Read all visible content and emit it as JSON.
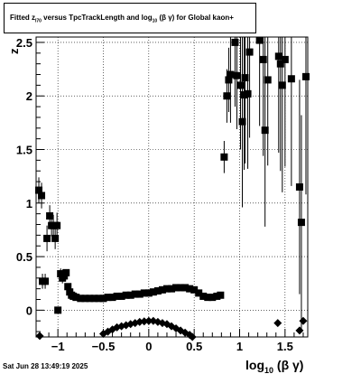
{
  "title": {
    "part1": "Fitted  z",
    "sub1": "I70",
    "part2": "  versus TpcTrackLength and log",
    "sub2": "10",
    "part3": " (β  γ) for Global kaon+"
  },
  "timestamp": "Sat Jun 28 13:49:19 2025",
  "chart_data": {
    "type": "scatter",
    "xlabel": "log10 (β γ)",
    "xlabel_main": "log",
    "xlabel_sub": "10",
    "xlabel_rest": " (β γ)",
    "ylabel": "z",
    "xlim": [
      -1.24,
      1.75
    ],
    "ylim": [
      -0.25,
      2.55
    ],
    "x_ticks": [
      -1,
      -0.5,
      0,
      0.5,
      1,
      1.5
    ],
    "x_tick_labels": [
      "−1",
      "−0.5",
      "0",
      "0.5",
      "1",
      "1.5"
    ],
    "y_ticks": [
      0,
      0.5,
      1,
      1.5,
      2,
      2.5
    ],
    "y_tick_labels": [
      "0",
      "0.5",
      "1",
      "1.5",
      "2",
      "2.5"
    ],
    "grid": true,
    "series": [
      {
        "marker": "square",
        "points": [
          [
            -1.21,
            1.12,
            0.12
          ],
          [
            -1.18,
            1.07,
            0.12
          ],
          [
            -1.17,
            0.27,
            0.07
          ],
          [
            -1.14,
            0.27,
            0.07
          ],
          [
            -1.12,
            0.67,
            0.12
          ],
          [
            -1.09,
            0.88,
            0.1
          ],
          [
            -1.07,
            0.79,
            0.1
          ],
          [
            -1.05,
            0.79,
            0.1
          ],
          [
            -1.03,
            0.67,
            0.1
          ],
          [
            -1.01,
            0.79,
            0.12
          ],
          [
            -1.0,
            0.0,
            0.0
          ],
          [
            -0.97,
            0.34,
            0.05
          ],
          [
            -0.95,
            0.3,
            0.05
          ],
          [
            -0.93,
            0.32,
            0.04
          ],
          [
            -0.91,
            0.35,
            0.03
          ],
          [
            -0.89,
            0.22,
            0.02
          ],
          [
            -0.87,
            0.17,
            0.02
          ],
          [
            -0.85,
            0.14,
            0.01
          ],
          [
            -0.83,
            0.13,
            0.01
          ],
          [
            -0.8,
            0.12,
            0.0
          ],
          [
            -0.75,
            0.11,
            0.0
          ],
          [
            -0.7,
            0.11,
            0.0
          ],
          [
            -0.65,
            0.11,
            0.0
          ],
          [
            -0.6,
            0.11,
            0.0
          ],
          [
            -0.55,
            0.11,
            0.0
          ],
          [
            -0.5,
            0.11,
            0.0
          ],
          [
            -0.45,
            0.12,
            0.0
          ],
          [
            -0.4,
            0.12,
            0.0
          ],
          [
            -0.35,
            0.13,
            0.0
          ],
          [
            -0.3,
            0.13,
            0.0
          ],
          [
            -0.25,
            0.14,
            0.0
          ],
          [
            -0.2,
            0.14,
            0.0
          ],
          [
            -0.15,
            0.15,
            0.0
          ],
          [
            -0.1,
            0.15,
            0.0
          ],
          [
            -0.05,
            0.16,
            0.0
          ],
          [
            0.0,
            0.16,
            0.0
          ],
          [
            0.05,
            0.17,
            0.0
          ],
          [
            0.1,
            0.18,
            0.0
          ],
          [
            0.15,
            0.19,
            0.0
          ],
          [
            0.2,
            0.2,
            0.0
          ],
          [
            0.25,
            0.2,
            0.0
          ],
          [
            0.3,
            0.21,
            0.0
          ],
          [
            0.35,
            0.21,
            0.0
          ],
          [
            0.4,
            0.21,
            0.0
          ],
          [
            0.45,
            0.2,
            0.0
          ],
          [
            0.5,
            0.19,
            0.01
          ],
          [
            0.55,
            0.16,
            0.01
          ],
          [
            0.6,
            0.13,
            0.01
          ],
          [
            0.65,
            0.12,
            0.01
          ],
          [
            0.7,
            0.12,
            0.01
          ],
          [
            0.75,
            0.13,
            0.02
          ],
          [
            0.79,
            0.14,
            0.02
          ],
          [
            0.83,
            1.43,
            0.15
          ],
          [
            0.86,
            2.0,
            0.25
          ],
          [
            0.88,
            2.15,
            0.3
          ],
          [
            0.9,
            2.2,
            0.45
          ],
          [
            0.95,
            2.5,
            0.6
          ],
          [
            0.97,
            2.19,
            0.5
          ],
          [
            1.01,
            2.1,
            0.6
          ],
          [
            1.03,
            1.76,
            0.8
          ],
          [
            1.05,
            2.01,
            0.7
          ],
          [
            1.06,
            2.17,
            0.8
          ],
          [
            1.09,
            2.02,
            0.7
          ],
          [
            1.11,
            2.41,
            0.8
          ],
          [
            1.22,
            2.52,
            0.8
          ],
          [
            1.26,
            2.34,
            0.9
          ],
          [
            1.28,
            1.68,
            0.9
          ],
          [
            1.31,
            2.15,
            0.8
          ],
          [
            1.43,
            2.37,
            0.9
          ],
          [
            1.45,
            2.3,
            1.0
          ],
          [
            1.47,
            2.1,
            1.0
          ],
          [
            1.5,
            2.34,
            1.0
          ],
          [
            1.57,
            2.16,
            1.0
          ],
          [
            1.66,
            1.15,
            1.0
          ],
          [
            1.68,
            0.82,
            1.0
          ],
          [
            1.73,
            2.18,
            1.1
          ]
        ]
      },
      {
        "marker": "diamond",
        "points": [
          [
            -1.2,
            -0.24
          ],
          [
            -0.5,
            -0.22
          ],
          [
            -0.45,
            -0.2
          ],
          [
            -0.4,
            -0.18
          ],
          [
            -0.35,
            -0.16
          ],
          [
            -0.3,
            -0.15
          ],
          [
            -0.25,
            -0.14
          ],
          [
            -0.2,
            -0.13
          ],
          [
            -0.15,
            -0.12
          ],
          [
            -0.1,
            -0.11
          ],
          [
            -0.05,
            -0.105
          ],
          [
            0.0,
            -0.1
          ],
          [
            0.05,
            -0.1
          ],
          [
            0.1,
            -0.11
          ],
          [
            0.15,
            -0.12
          ],
          [
            0.2,
            -0.13
          ],
          [
            0.25,
            -0.15
          ],
          [
            0.3,
            -0.17
          ],
          [
            0.35,
            -0.19
          ],
          [
            0.4,
            -0.21
          ],
          [
            0.45,
            -0.23
          ],
          [
            0.48,
            -0.25
          ],
          [
            1.42,
            -0.12
          ],
          [
            1.66,
            -0.19
          ],
          [
            1.7,
            -0.1
          ]
        ]
      }
    ]
  }
}
